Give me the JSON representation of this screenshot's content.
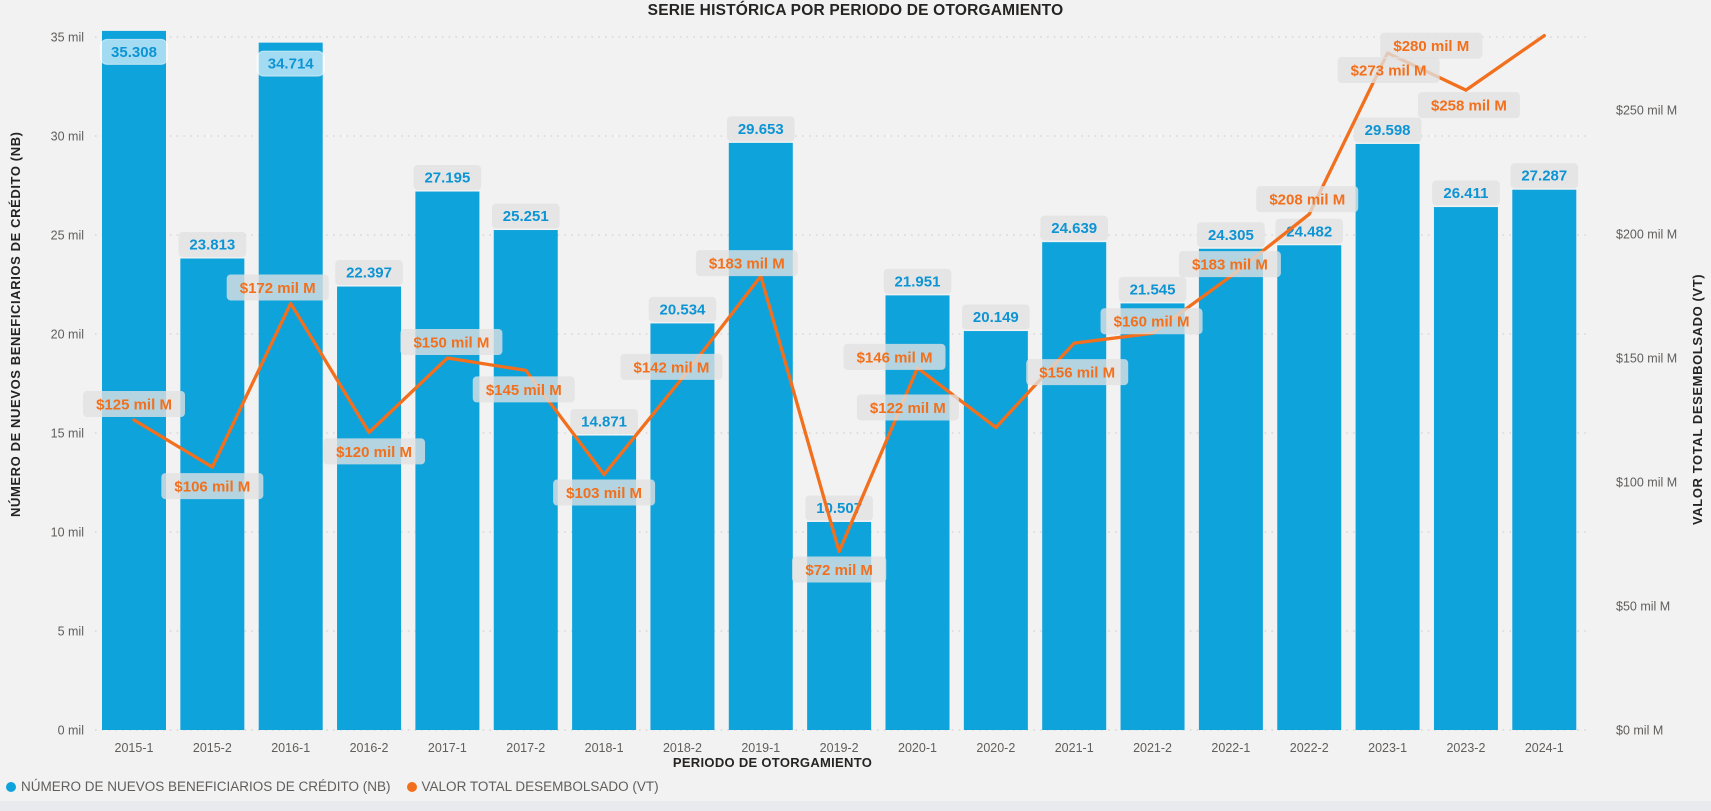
{
  "title": "SERIE HISTÓRICA POR PERIODO DE OTORGAMIENTO",
  "colors": {
    "background": "#f2f2f2",
    "bar": "#0FA3DC",
    "bar_label_text": "#0D94D4",
    "line": "#F2701D",
    "line_label_text": "#F2701D",
    "axis_text": "#605E5C",
    "title_text": "#252423",
    "gridline": "#D8D8D8"
  },
  "chart_data": {
    "type": "combo-bar-line",
    "title": "SERIE HISTÓRICA POR PERIODO DE OTORGAMIENTO",
    "categories": [
      "2015-1",
      "2015-2",
      "2016-1",
      "2016-2",
      "2017-1",
      "2017-2",
      "2018-1",
      "2018-2",
      "2019-1",
      "2019-2",
      "2020-1",
      "2020-2",
      "2021-1",
      "2021-2",
      "2022-1",
      "2022-2",
      "2023-1",
      "2023-2",
      "2024-1"
    ],
    "series": [
      {
        "name": "NÚMERO DE NUEVOS BENEFICIARIOS DE CRÉDITO (NB)",
        "type": "bar",
        "axis": "left",
        "color": "#0FA3DC",
        "values": [
          35308,
          23813,
          34714,
          22397,
          27195,
          25251,
          14871,
          20534,
          29653,
          10507,
          21951,
          20149,
          24639,
          21545,
          24305,
          24482,
          29598,
          26411,
          27287
        ],
        "labels": [
          "35.308",
          "23.813",
          "34.714",
          "22.397",
          "27.195",
          "25.251",
          "14.871",
          "20.534",
          "29.653",
          "10.507",
          "21.951",
          "20.149",
          "24.639",
          "21.545",
          "24.305",
          "24.482",
          "29.598",
          "26.411",
          "27.287"
        ]
      },
      {
        "name": "VALOR TOTAL DESEMBOLSADO (VT)",
        "type": "line",
        "axis": "right",
        "color": "#F2701D",
        "values": [
          125,
          106,
          172,
          120,
          150,
          145,
          103,
          142,
          183,
          72,
          146,
          122,
          156,
          160,
          183,
          208,
          273,
          258,
          280
        ],
        "labels": [
          "$125 mil M",
          "$106 mil M",
          "$172 mil M",
          "$120 mil M",
          "$150 mil M",
          "$145 mil M",
          "$103 mil M",
          "$142 mil M",
          "$183 mil M",
          "$72 mil M",
          "$146 mil M",
          "$122 mil M",
          "$156 mil M",
          "$160 mil M",
          "$183 mil M",
          "$208 mil M",
          "$273 mil M",
          "$258 mil M",
          "$280 mil M"
        ]
      }
    ],
    "x_axis": {
      "title": "PERIODO DE OTORGAMIENTO"
    },
    "left_axis": {
      "title": "NÚMERO DE NUEVOS BENEFICIARIOS DE CRÉDITO (NB)",
      "ticks": [
        "0 mil",
        "5 mil",
        "10 mil",
        "15 mil",
        "20 mil",
        "25 mil",
        "30 mil",
        "35 mil"
      ],
      "range": [
        0,
        35000
      ],
      "grid": true
    },
    "right_axis": {
      "title": "VALOR TOTAL DESEMBOLSADO (VT)",
      "ticks": [
        "$0 mil M",
        "$50 mil M",
        "$100 mil M",
        "$150 mil M",
        "$200 mil M",
        "$250 mil M"
      ],
      "range": [
        0,
        280
      ],
      "grid": false
    },
    "legend_position": "bottom-left",
    "legend": [
      {
        "label": "NÚMERO DE NUEVOS BENEFICIARIOS DE CRÉDITO (NB)",
        "color": "#0FA3DC"
      },
      {
        "label": "VALOR TOTAL DESEMBOLSADO (VT)",
        "color": "#F2701D"
      }
    ]
  }
}
